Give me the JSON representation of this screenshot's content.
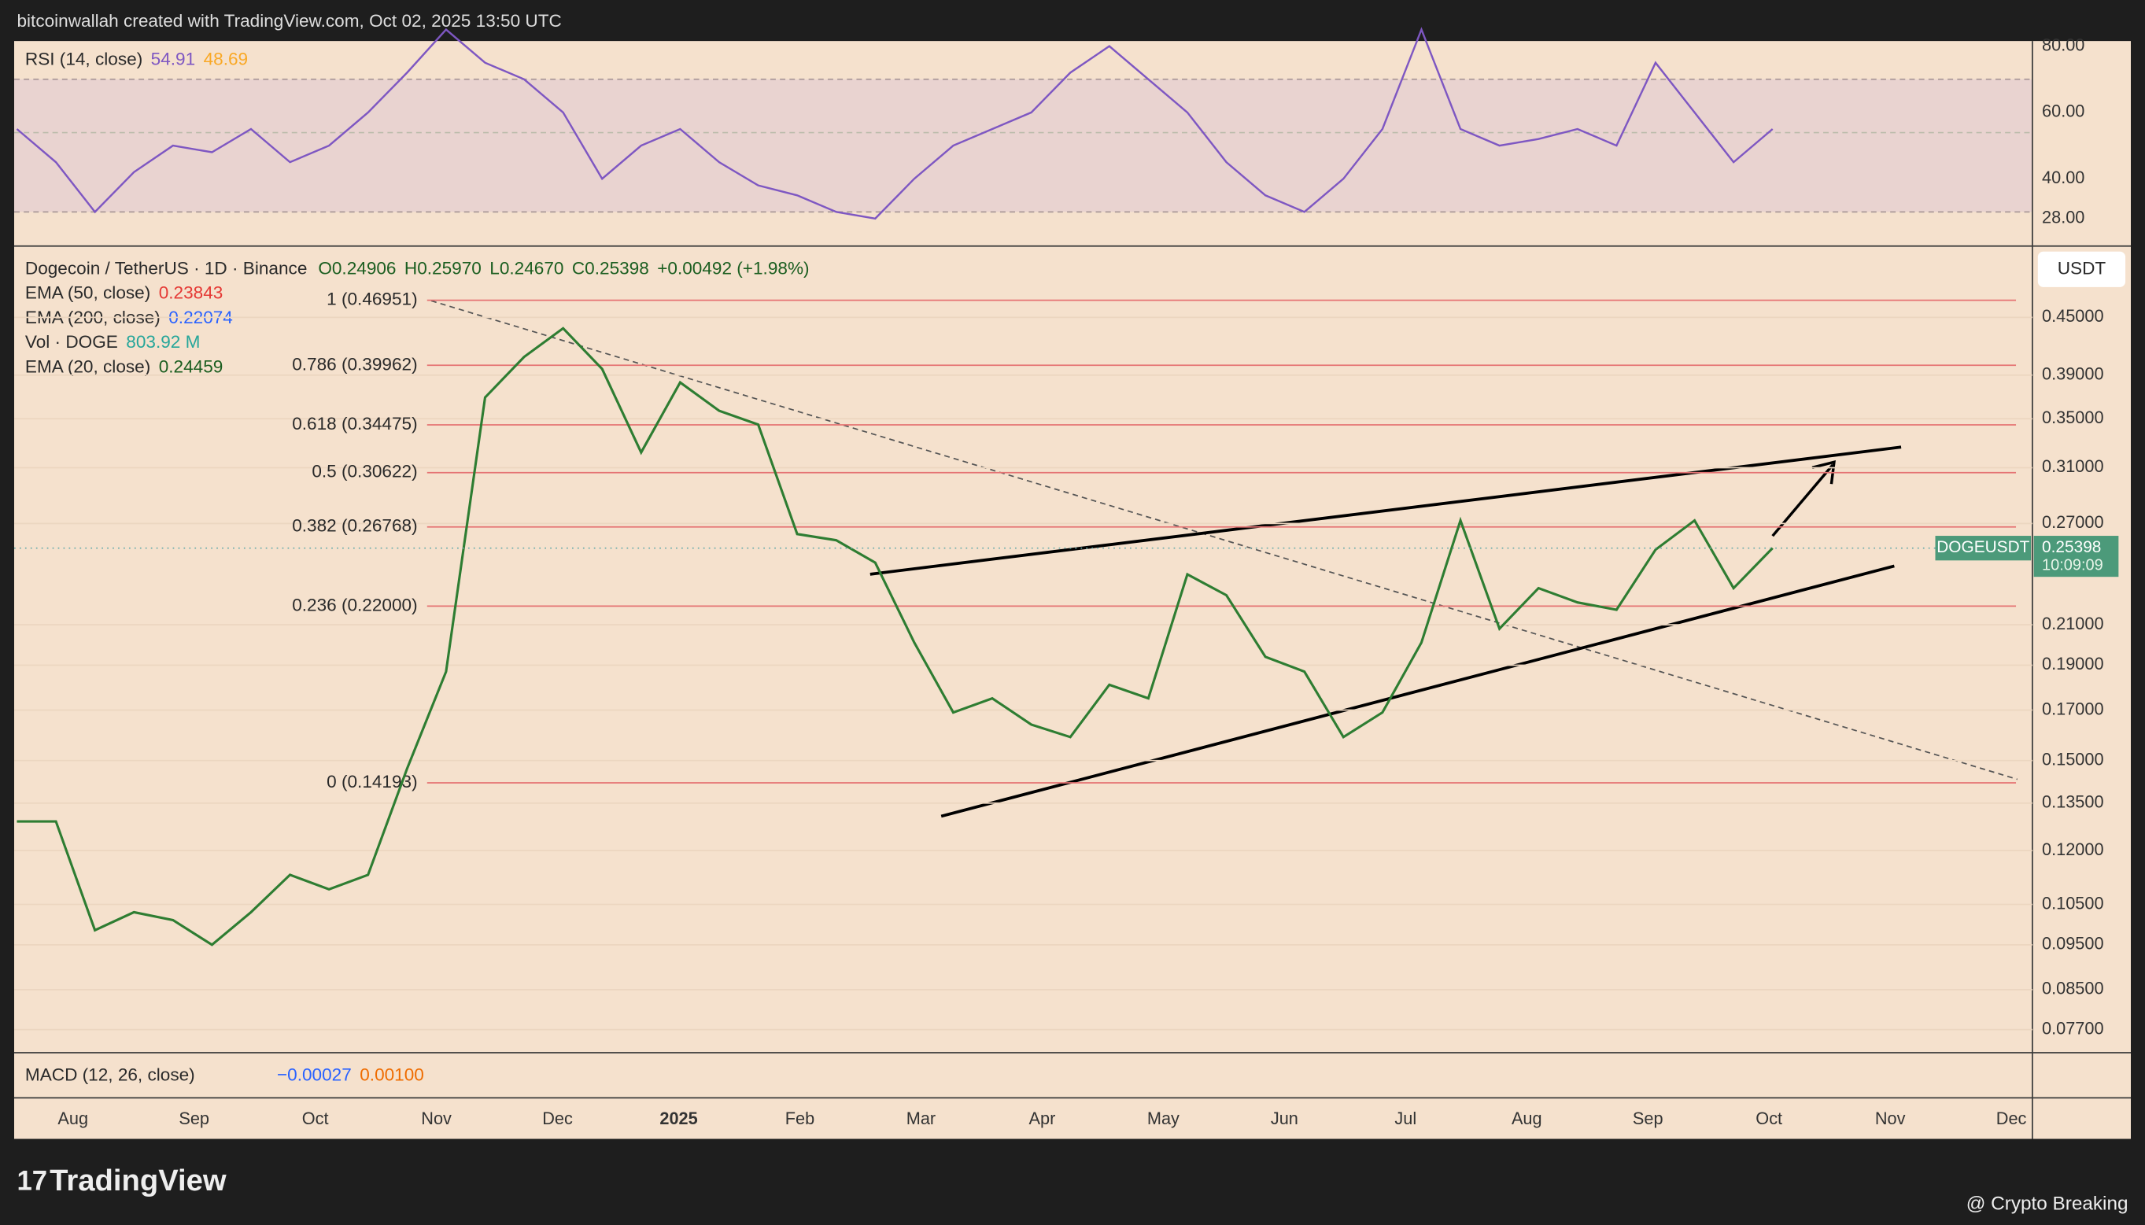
{
  "header": {
    "credit": "bitcoinwallah created with TradingView.com, Oct 02, 2025 13:50 UTC"
  },
  "rsi": {
    "label": "RSI (14, close)",
    "value": "54.91",
    "ma": "48.69",
    "ticks": [
      {
        "value": 80,
        "label": "80.00"
      },
      {
        "value": 60,
        "label": "60.00"
      },
      {
        "value": 40,
        "label": "40.00"
      },
      {
        "value": 28,
        "label": "28.00"
      }
    ],
    "values": [
      55,
      45,
      30,
      42,
      50,
      48,
      55,
      45,
      50,
      60,
      72,
      85,
      75,
      70,
      60,
      40,
      50,
      55,
      45,
      38,
      35,
      30,
      28,
      40,
      50,
      55,
      60,
      72,
      80,
      70,
      60,
      45,
      35,
      30,
      40,
      55,
      85,
      55,
      50,
      52,
      55,
      50,
      75,
      60,
      45,
      55
    ]
  },
  "main": {
    "symbol": "Dogecoin / TetherUS · 1D · Binance",
    "ohlc": [
      "O0.24906",
      "H0.25970",
      "L0.24670",
      "C0.25398",
      "+0.00492 (+1.98%)"
    ],
    "indicators": [
      {
        "name": "EMA (50, close)",
        "value": "0.23843",
        "color": "#e53935"
      },
      {
        "name": "EMA (200, close)",
        "value": "0.22074",
        "color": "#2962ff"
      },
      {
        "name": "Vol · DOGE",
        "value": "803.92 M",
        "color": "#26a69a"
      },
      {
        "name": "EMA (20, close)",
        "value": "0.24459",
        "color": "#1b5e20"
      }
    ],
    "currency": "USDT",
    "price_lim": [
      0.0727,
      0.537
    ],
    "price_ticks": [
      {
        "value": 0.45,
        "label": "0.45000"
      },
      {
        "value": 0.39,
        "label": "0.39000"
      },
      {
        "value": 0.35,
        "label": "0.35000"
      },
      {
        "value": 0.31,
        "label": "0.31000"
      },
      {
        "value": 0.27,
        "label": "0.27000"
      },
      {
        "value": 0.21,
        "label": "0.21000"
      },
      {
        "value": 0.19,
        "label": "0.19000"
      },
      {
        "value": 0.17,
        "label": "0.17000"
      },
      {
        "value": 0.15,
        "label": "0.15000"
      },
      {
        "value": 0.135,
        "label": "0.13500"
      },
      {
        "value": 0.12,
        "label": "0.12000"
      },
      {
        "value": 0.105,
        "label": "0.10500"
      },
      {
        "value": 0.095,
        "label": "0.09500"
      },
      {
        "value": 0.085,
        "label": "0.08500"
      },
      {
        "value": 0.077,
        "label": "0.07700"
      }
    ],
    "fib": [
      {
        "label": "1 (0.46951)",
        "value": 0.46951
      },
      {
        "label": "0.786 (0.39962)",
        "value": 0.39962
      },
      {
        "label": "0.618 (0.34475)",
        "value": 0.34475
      },
      {
        "label": "0.5 (0.30622)",
        "value": 0.30622
      },
      {
        "label": "0.382 (0.26768)",
        "value": 0.26768
      },
      {
        "label": "0.236 (0.22000)",
        "value": 0.22
      },
      {
        "label": "0 (0.14193)",
        "value": 0.14193
      }
    ],
    "closes": [
      0.129,
      0.129,
      0.0985,
      0.103,
      0.101,
      0.095,
      0.103,
      0.113,
      0.109,
      0.113,
      0.147,
      0.187,
      0.369,
      0.408,
      0.438,
      0.396,
      0.322,
      0.383,
      0.357,
      0.345,
      0.263,
      0.259,
      0.245,
      0.201,
      0.169,
      0.175,
      0.164,
      0.159,
      0.181,
      0.175,
      0.238,
      0.226,
      0.194,
      0.187,
      0.159,
      0.169,
      0.201,
      0.272,
      0.208,
      0.23,
      0.222,
      0.218,
      0.253,
      0.272,
      0.23,
      0.254
    ],
    "badge": {
      "symbol": "DOGEUSDT",
      "price": 0.25398,
      "countdown": "10:09:09"
    }
  },
  "macd": {
    "label": "MACD (12, 26, close)",
    "values": [
      "−0.00027",
      "0.00100"
    ]
  },
  "time_axis": [
    "Aug",
    "Sep",
    "Oct",
    "Nov",
    "Dec",
    "2025",
    "Feb",
    "Mar",
    "Apr",
    "May",
    "Jun",
    "Jul",
    "Aug",
    "Sep",
    "Oct",
    "Nov",
    "Dec"
  ],
  "footer": {
    "brand": "TradingView",
    "source": "@ Crypto Breaking"
  }
}
